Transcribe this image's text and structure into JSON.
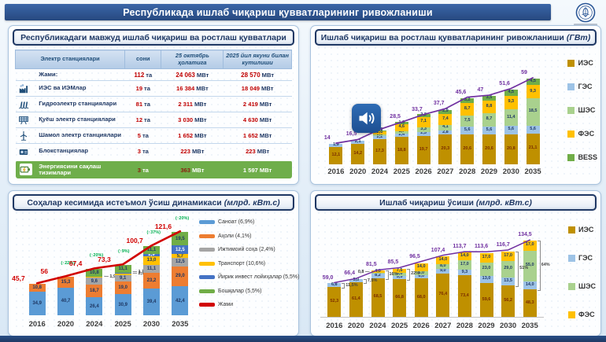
{
  "header": {
    "title": "Республикада ишлаб чиқариш қувватларининг ривожланиши"
  },
  "colors": {
    "navy": "#1F3864",
    "title_bar": "#2A4F86",
    "green_row": "#6FAE4B",
    "red_value": "#C00000"
  },
  "icons": {
    "audio_button": "speaker-loud-icon",
    "logo": "ministry-emblem-icon",
    "table_rows": [
      "",
      "thermal-plant-icon",
      "hydro-plant-icon",
      "solar-plant-icon",
      "wind-plant-icon",
      "block-station-icon",
      "battery-storage-icon"
    ]
  },
  "capacity_table": {
    "title": "Республикадаги мавжуд ишлаб чиқариш ва ростлаш қувватлари",
    "columns": [
      "Электр станциялари",
      "сони",
      "25 октябрь ҳолатига",
      "2025 йил якуни билан кутилиши"
    ],
    "rows": [
      {
        "icon": "",
        "name": "Жами:",
        "count": "112",
        "count_unit": "та",
        "current": "24 063",
        "current_unit": "МВт",
        "expected": "28 570",
        "expected_unit": "МВт",
        "variant": "total"
      },
      {
        "icon": "thermal-plant-icon",
        "name": "ИЭС ва ИЭМлар",
        "count": "19",
        "count_unit": "та",
        "current": "16 384",
        "current_unit": "МВт",
        "expected": "18 049",
        "expected_unit": "МВт",
        "variant": "normal"
      },
      {
        "icon": "hydro-plant-icon",
        "name": "Гидроэлектр станциялари",
        "count": "81",
        "count_unit": "та",
        "current": "2 311",
        "current_unit": "МВт",
        "expected": "2 419",
        "expected_unit": "МВт",
        "variant": "normal"
      },
      {
        "icon": "solar-plant-icon",
        "name": "Қуёш электр станциялари",
        "count": "12",
        "count_unit": "та",
        "current": "3 030",
        "current_unit": "МВт",
        "expected": "4 630",
        "expected_unit": "МВт",
        "variant": "normal"
      },
      {
        "icon": "wind-plant-icon",
        "name": "Шамол электр станциялари",
        "count": "5",
        "count_unit": "та",
        "current": "1 652",
        "current_unit": "МВт",
        "expected": "1 652",
        "expected_unit": "МВт",
        "variant": "normal"
      },
      {
        "icon": "block-station-icon",
        "name": "Блокстанциялар",
        "count": "3",
        "count_unit": "та",
        "current": "223",
        "current_unit": "МВт",
        "expected": "223",
        "expected_unit": "МВт",
        "variant": "normal"
      },
      {
        "icon": "battery-storage-icon",
        "name": "Энергиясини сақлаш тизимлари",
        "count": "3",
        "count_unit": "та",
        "current": "363",
        "current_unit": "МВт",
        "expected": "1 597",
        "expected_unit": "МВт",
        "variant": "storage"
      }
    ]
  },
  "chart_data": [
    {
      "type": "bar",
      "subtype": "stacked-bars-with-total-line",
      "title": "Ишлаб чиқариш ва ростлаш қувватларининг ривожланиши",
      "unit": "(ГВт)",
      "categories": [
        "2016",
        "2020",
        "2024",
        "2025",
        "2026",
        "2027",
        "2028",
        "2029",
        "2030",
        "2035"
      ],
      "series": [
        {
          "name": "ИЭС",
          "color": "#BF9000",
          "label_color": "#7B2D00",
          "values": [
            "12,1",
            "14,2",
            "17,3",
            "18,8",
            "19,7",
            "20,3",
            "20,6",
            "20,6",
            "20,8",
            "21,1"
          ]
        },
        {
          "name": "ГЭС",
          "color": "#9DC3E6",
          "label_color": "#1F3864",
          "values": [
            "1,9",
            "2,1",
            "2,2",
            "2,4",
            "2,5",
            "2,8",
            "5,6",
            "5,6",
            "5,6",
            "5,6"
          ]
        },
        {
          "name": "ШЭС",
          "color": "#A9D18E",
          "label_color": "#1F3864",
          "values": [
            "",
            "",
            "0,9",
            "1,7",
            "3,3",
            "4,1",
            "7,5",
            "8,7",
            "11,4",
            "18,5"
          ]
        },
        {
          "name": "ФЭС",
          "color": "#FFC000",
          "label_color": "#1F3864",
          "values": [
            "",
            "",
            "2,6",
            "4,6",
            "7,1",
            "7,4",
            "8,7",
            "8,8",
            "9,3",
            "9,3"
          ]
        },
        {
          "name": "BESS",
          "color": "#70AD47",
          "label_color": "#1F3864",
          "values": [
            "",
            "",
            "0,3",
            "1,6",
            "2,2",
            "2,9",
            "3,2",
            "3,5",
            "4,5",
            "4,5"
          ]
        }
      ],
      "line": {
        "name": "Жами",
        "color": "#7030A0",
        "values": [
          14,
          16.5,
          23.5,
          28.5,
          33.7,
          37.7,
          45.6,
          47,
          51.6,
          59
        ],
        "labels": [
          "14",
          "16,5",
          "",
          "28,5",
          "33,7",
          "37,7",
          "45,6",
          "47",
          "51,6",
          "59"
        ]
      },
      "ylim": [
        0,
        62
      ],
      "legend_position": "right",
      "grid": false
    },
    {
      "type": "bar",
      "subtype": "stacked-bars-with-total-line",
      "title": "Соҳалар кесимида истеъмол ўсиш динамикаси",
      "unit": "(млрд. кВт.с)",
      "categories": [
        "2016",
        "2020",
        "2024",
        "2025",
        "2030",
        "2035"
      ],
      "series": [
        {
          "name": "Саноат (6,9%)",
          "color": "#5B9BD5",
          "label_color": "#1F3864",
          "values": [
            "34,9",
            "40,7",
            "26,4",
            "30,9",
            "39,4",
            "42,4"
          ]
        },
        {
          "name": "Аҳоли (4,1%)",
          "color": "#ED7D31",
          "label_color": "#1F3864",
          "values": [
            "10,8",
            "15,3",
            "18,7",
            "19,0",
            "23,2",
            "29,0"
          ]
        },
        {
          "name": "Ижтимоий соҳа (2,4%)",
          "color": "#A5A5A5",
          "label_color": "#1F3864",
          "values": [
            "",
            "",
            "9,6",
            "9,1",
            "11,1",
            "12,5"
          ]
        },
        {
          "name": "Транспорт (10,6%)",
          "color": "#FFC000",
          "label_color": "#1F3864",
          "values": [
            "",
            "",
            "1,9",
            "2,1",
            "13,0",
            "5,7"
          ]
        },
        {
          "name": "Йирик инвест лойиҳалар (5,5%)",
          "color": "#4472C4",
          "label_color": "#FFFFFF",
          "values": [
            "",
            "",
            "",
            "1,1",
            "2,9",
            "12,5"
          ]
        },
        {
          "name": "Бошқалар (5,5%)",
          "color": "#70AD47",
          "label_color": "#1F3864",
          "values": [
            "",
            "",
            "10,8",
            "11,1",
            "11,1",
            "19,5"
          ]
        }
      ],
      "line": {
        "name": "Жами",
        "color": "#D10000",
        "values": [
          45.7,
          56,
          67.4,
          73.3,
          100.7,
          121.6
        ],
        "labels": [
          "45,7",
          "56",
          "67,4",
          "73,3",
          "100,7",
          "121,6"
        ],
        "growth": [
          "",
          "(↑22%)",
          "(↑20%)",
          "(↑9%)",
          "(↑37%)",
          "(↑20%)"
        ]
      },
      "callouts": [
        {
          "cat": 2,
          "series": 3,
          "side": "right"
        },
        {
          "cat": 3,
          "series": 4,
          "side": "right"
        },
        {
          "cat": 3,
          "series": 3,
          "side": "right"
        }
      ],
      "ylim": [
        0,
        135
      ],
      "legend_position": "right",
      "grid": false
    },
    {
      "type": "bar",
      "subtype": "stacked-bars-with-total-line",
      "title": "Ишлаб чиқариш ўсиши",
      "unit": "(млрд. кВт.с)",
      "categories": [
        "2016",
        "2020",
        "2024",
        "2025",
        "2026",
        "2027",
        "2028",
        "2029",
        "2030",
        "2035"
      ],
      "series": [
        {
          "name": "ИЭС",
          "color": "#BF9000",
          "label_color": "#7B2D00",
          "values": [
            "52,3",
            "61,4",
            "68,5",
            "66,8",
            "68,0",
            "76,4",
            "73,4",
            "59,6",
            "56,2",
            "48,3"
          ]
        },
        {
          "name": "ГЭС",
          "color": "#9DC3E6",
          "label_color": "#1F3864",
          "values": [
            "6,8",
            "5,0",
            "8,2",
            "5,5",
            "6,0",
            "9,0",
            "9,3",
            "13,0",
            "13,5",
            "14,0"
          ]
        },
        {
          "name": "ШЭС",
          "color": "#A9D18E",
          "label_color": "#1F3864",
          "values": [
            "",
            "",
            "0,8",
            "5,0",
            "6,0",
            "8,0",
            "17,0",
            "23,0",
            "29,0",
            "55,0"
          ]
        },
        {
          "name": "ФЭС",
          "color": "#FFC000",
          "label_color": "#1F3864",
          "values": [
            "",
            "",
            "4,0",
            "7,5",
            "14,0",
            "14,0",
            "14,0",
            "17,0",
            "17,0",
            "17,0"
          ]
        }
      ],
      "line": {
        "name": "Жами",
        "color": "#7030A0",
        "values": [
          59,
          66.4,
          81.5,
          85.5,
          96.5,
          107.4,
          113.7,
          113.6,
          116.7,
          134.5
        ],
        "labels": [
          "59,0",
          "66,4",
          "81,5",
          "85,5",
          "96,5",
          "107,4",
          "113,7",
          "113,6",
          "116,7",
          "134,5"
        ]
      },
      "callouts": [
        {
          "cat": 2,
          "series": 2,
          "side": "left"
        }
      ],
      "brackets": [
        {
          "cat": 0,
          "label": "11,5%"
        },
        {
          "cat": 1,
          "label": "7,5%"
        },
        {
          "cat": 2,
          "label": "16%"
        },
        {
          "cat": 3,
          "label": "22%"
        },
        {
          "cat": 8,
          "label": "51%"
        },
        {
          "cat": 9,
          "label": "64%"
        }
      ],
      "ylim": [
        0,
        140
      ],
      "legend_position": "right",
      "grid": false
    }
  ]
}
